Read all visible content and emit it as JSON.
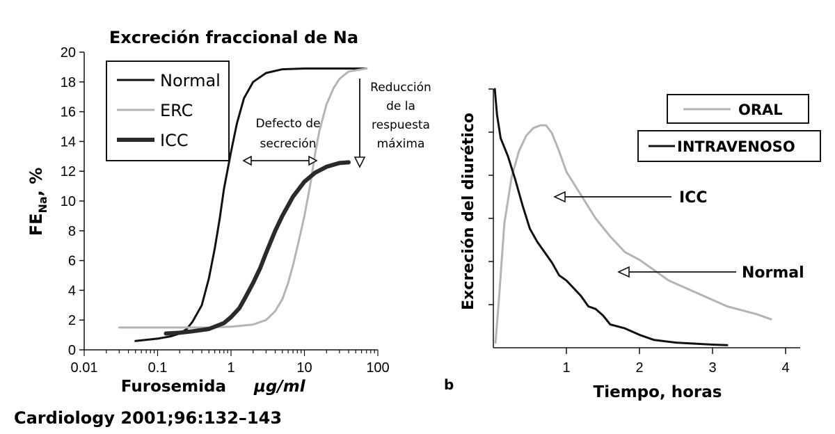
{
  "citation": "Cardiology 2001;96:132–143",
  "chart_data": [
    {
      "panel": "a",
      "type": "line",
      "title": "Excreción fraccional de Na",
      "xlabel": "Furosemida",
      "xlabel_unit": "μg/ml",
      "ylabel_main": "FE",
      "ylabel_sub": "Na",
      "ylabel_tail": ", %",
      "xscale": "log",
      "xlim": [
        0.01,
        100
      ],
      "ylim": [
        0,
        20
      ],
      "xticks": [
        0.01,
        0.1,
        1,
        10,
        100
      ],
      "xtick_labels": [
        "0.01",
        "0.1",
        "1",
        "10",
        "100"
      ],
      "yticks": [
        0,
        2,
        4,
        6,
        8,
        10,
        12,
        14,
        16,
        18,
        20
      ],
      "ytick_labels": [
        "0",
        "2",
        "4",
        "6",
        "8",
        "10",
        "12",
        "14",
        "16",
        "18",
        "20"
      ],
      "legend_position": "top-left",
      "series": [
        {
          "name": "Normal",
          "color": "#111111",
          "width": 3,
          "x": [
            0.05,
            0.1,
            0.15,
            0.2,
            0.25,
            0.3,
            0.4,
            0.5,
            0.6,
            0.7,
            0.8,
            1.0,
            1.2,
            1.5,
            2.0,
            3.0,
            5.0,
            10,
            20,
            40,
            70
          ],
          "y": [
            0.6,
            0.75,
            0.9,
            1.1,
            1.4,
            1.9,
            3.0,
            4.8,
            6.8,
            8.8,
            10.8,
            13.3,
            15.2,
            16.9,
            18.0,
            18.6,
            18.85,
            18.9,
            18.9,
            18.9,
            18.9
          ]
        },
        {
          "name": "ERC",
          "color": "#b4b4b4",
          "width": 3,
          "x": [
            0.03,
            0.1,
            0.5,
            1.0,
            2.0,
            3.0,
            4.0,
            5.0,
            6.0,
            7.0,
            8.0,
            9.0,
            10,
            11,
            12,
            14,
            16,
            20,
            25,
            30,
            40,
            70
          ],
          "y": [
            1.5,
            1.5,
            1.5,
            1.55,
            1.7,
            2.0,
            2.6,
            3.4,
            4.5,
            5.7,
            6.9,
            8.0,
            9.0,
            10.1,
            11.1,
            13.2,
            14.7,
            16.5,
            17.6,
            18.2,
            18.7,
            18.9
          ]
        },
        {
          "name": "ICC",
          "color": "#2a2a2a",
          "width": 6,
          "x": [
            0.13,
            0.2,
            0.3,
            0.5,
            0.8,
            1.0,
            1.3,
            1.6,
            2.0,
            2.5,
            3.0,
            4.0,
            5.0,
            7.0,
            10,
            14,
            20,
            30,
            40
          ],
          "y": [
            1.1,
            1.15,
            1.25,
            1.4,
            1.8,
            2.2,
            2.8,
            3.6,
            4.5,
            5.5,
            6.5,
            8.0,
            9.0,
            10.3,
            11.3,
            11.9,
            12.3,
            12.55,
            12.6
          ]
        }
      ],
      "annotations": [
        {
          "id": "defecto",
          "lines": [
            "Defecto de",
            "secreción"
          ]
        },
        {
          "id": "reduccion",
          "lines": [
            "Reducción",
            "de la",
            "respuesta",
            "máxima"
          ]
        }
      ]
    },
    {
      "panel": "b",
      "panel_label": "b",
      "type": "line",
      "title": "",
      "xlabel": "Tiempo, horas",
      "ylabel": "Excreción del diurético",
      "xlim": [
        0,
        4.2
      ],
      "xticks": [
        1,
        2,
        3,
        4
      ],
      "xtick_labels": [
        "1",
        "2",
        "3",
        "4"
      ],
      "ylim": [
        0,
        10
      ],
      "legend_position": "top-right",
      "series": [
        {
          "name": "ORAL",
          "color": "#b4b4b4",
          "width": 3,
          "x": [
            0.03,
            0.08,
            0.15,
            0.25,
            0.35,
            0.45,
            0.55,
            0.65,
            0.72,
            0.8,
            0.9,
            1.0,
            1.2,
            1.4,
            1.6,
            1.8,
            2.0,
            2.2,
            2.4,
            2.8,
            3.2,
            3.6,
            3.8
          ],
          "y": [
            0.2,
            2.0,
            4.8,
            6.6,
            7.6,
            8.2,
            8.5,
            8.6,
            8.6,
            8.3,
            7.6,
            6.8,
            5.9,
            5.0,
            4.3,
            3.7,
            3.4,
            3.0,
            2.6,
            2.1,
            1.6,
            1.3,
            1.1
          ]
        },
        {
          "name": "INTRAVENOSO",
          "color": "#111111",
          "width": 3,
          "x": [
            0.02,
            0.05,
            0.1,
            0.2,
            0.3,
            0.4,
            0.5,
            0.6,
            0.7,
            0.8,
            0.9,
            1.0,
            1.1,
            1.2,
            1.3,
            1.4,
            1.5,
            1.6,
            1.8,
            2.0,
            2.2,
            2.5,
            3.0,
            3.2
          ],
          "y": [
            10.0,
            9.0,
            8.1,
            7.4,
            6.5,
            5.5,
            4.6,
            4.1,
            3.7,
            3.3,
            2.8,
            2.6,
            2.3,
            2.0,
            1.6,
            1.5,
            1.25,
            0.9,
            0.75,
            0.5,
            0.3,
            0.2,
            0.12,
            0.1
          ]
        }
      ],
      "annotations": [
        {
          "id": "icc",
          "text": "ICC"
        },
        {
          "id": "normal",
          "text": "Normal"
        }
      ]
    }
  ]
}
